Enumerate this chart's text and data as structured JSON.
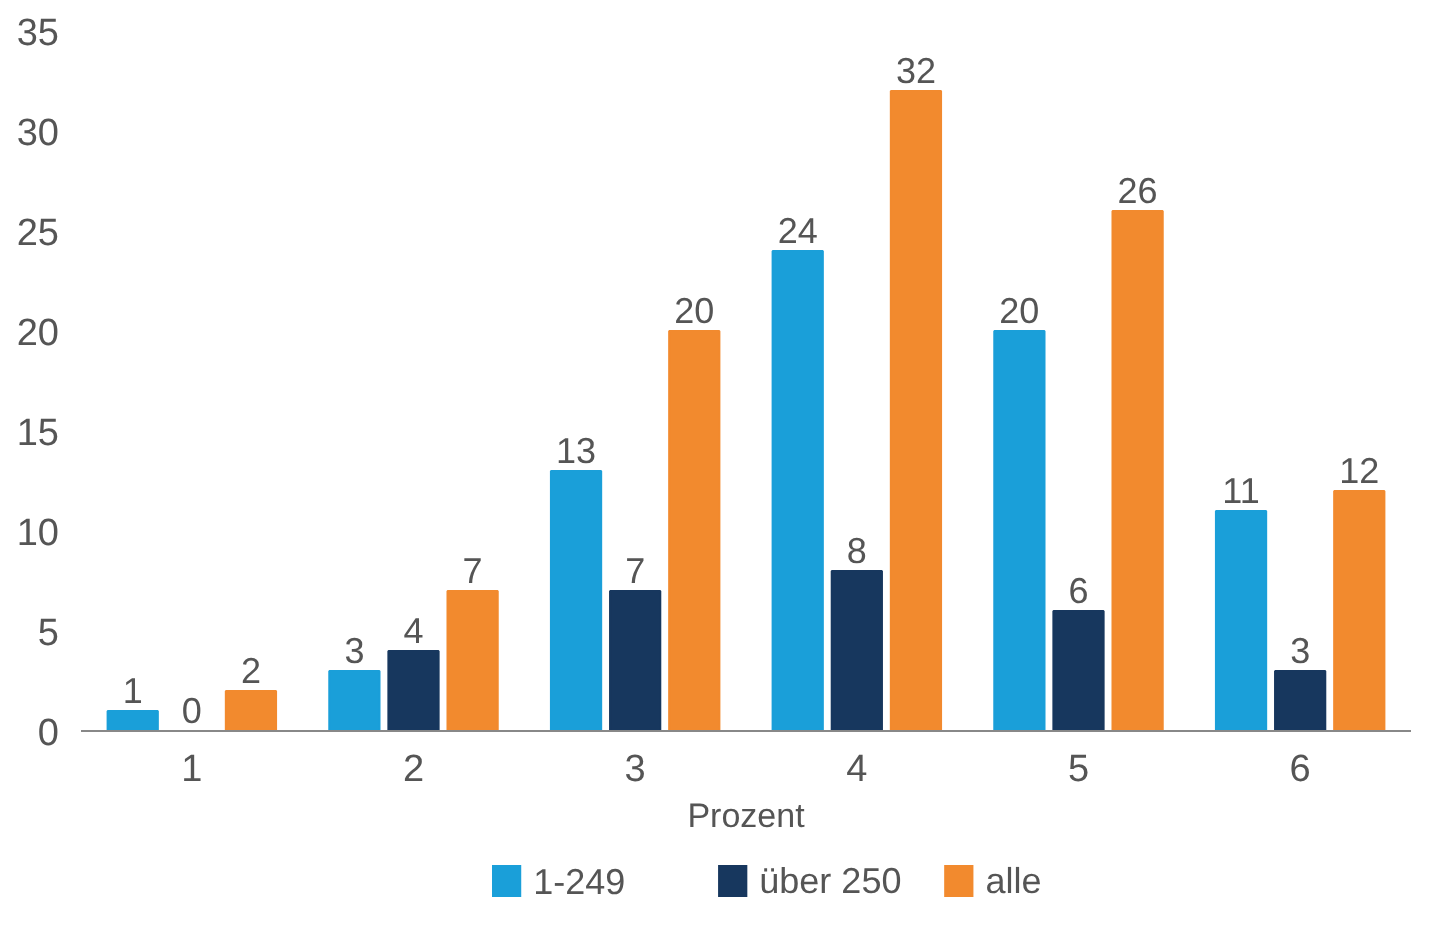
{
  "chart_data": {
    "type": "bar",
    "xlabel": "Prozent",
    "categories": [
      "1",
      "2",
      "3",
      "4",
      "5",
      "6"
    ],
    "series": [
      {
        "name": "1-249",
        "color": "#1a9fd9",
        "values": [
          1,
          3,
          13,
          24,
          20,
          11
        ]
      },
      {
        "name": "über 250",
        "color": "#17375e",
        "values": [
          0,
          4,
          7,
          8,
          6,
          3
        ]
      },
      {
        "name": "alle",
        "color": "#f28a2e",
        "values": [
          2,
          7,
          20,
          32,
          26,
          12
        ]
      }
    ],
    "ylim": [
      0,
      35
    ],
    "yticks": [
      0,
      5,
      10,
      15,
      20,
      25,
      30,
      35
    ],
    "data_labels": true,
    "grid": false,
    "legend": "bottom"
  }
}
